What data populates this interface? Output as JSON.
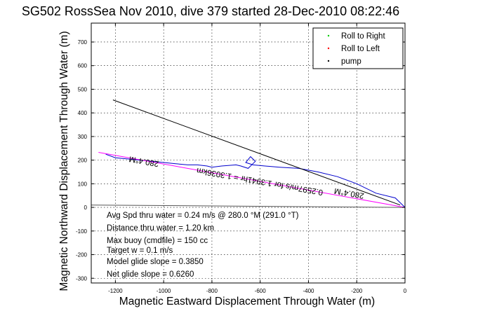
{
  "chart_data": {
    "type": "line",
    "title": "SG502 RossSea Nov 2010, dive 379 started 28-Dec-2010 08:22:46",
    "xlabel": "Magnetic Eastward Displacement Through Water (m)",
    "ylabel": "Magnetic Northward Displacement Through Water (m)",
    "xlim": [
      -1300,
      0
    ],
    "ylim": [
      -320,
      780
    ],
    "xticks": [
      -1200,
      -1000,
      -800,
      -600,
      -400,
      -200,
      0
    ],
    "yticks": [
      -300,
      -200,
      -100,
      0,
      100,
      200,
      300,
      400,
      500,
      600,
      700
    ],
    "grid": true,
    "legend_position": "top-right",
    "legend": [
      {
        "label": "Roll to Right",
        "color": "#00cc00",
        "marker": "."
      },
      {
        "label": "Roll to Left",
        "color": "#ff0000",
        "marker": "."
      },
      {
        "label": "pump",
        "color": "#000000",
        "marker": "."
      }
    ],
    "series": [
      {
        "color": "#0000cc",
        "values": [
          [
            0,
            0
          ],
          [
            -40,
            40
          ],
          [
            -120,
            60
          ],
          [
            -200,
            100
          ],
          [
            -280,
            130
          ],
          [
            -360,
            150
          ],
          [
            -440,
            165
          ],
          [
            -520,
            170
          ],
          [
            -580,
            175
          ],
          [
            -630,
            180
          ],
          [
            -660,
            190
          ],
          [
            -640,
            215
          ],
          [
            -620,
            195
          ],
          [
            -650,
            165
          ],
          [
            -680,
            175
          ],
          [
            -700,
            180
          ],
          [
            -760,
            175
          ],
          [
            -800,
            170
          ],
          [
            -820,
            175
          ],
          [
            -860,
            180
          ],
          [
            -900,
            180
          ],
          [
            -950,
            185
          ],
          [
            -1000,
            190
          ],
          [
            -1050,
            195
          ],
          [
            -1100,
            200
          ],
          [
            -1150,
            205
          ],
          [
            -1200,
            210
          ],
          [
            -1240,
            225
          ]
        ]
      },
      {
        "color": "#ff00ff",
        "values": [
          [
            -1270,
            233
          ],
          [
            0,
            0
          ]
        ]
      },
      {
        "color": "#000000",
        "values": [
          [
            -1210,
            455
          ],
          [
            -20,
            10
          ]
        ]
      },
      {
        "color": "#555555",
        "values": [
          [
            -1300,
            10
          ],
          [
            0,
            0
          ]
        ]
      }
    ],
    "annotations": [
      {
        "text": "280.4°M",
        "x": -1080,
        "y": 205,
        "angle": 190
      },
      {
        "text": "0.2597m/s for 1.3941hr = 1.3036km",
        "x": -600,
        "y": 120,
        "angle": 190
      },
      {
        "text": "280.4°M",
        "x": -230,
        "y": 70,
        "angle": 190
      }
    ]
  },
  "stats": {
    "avg_speed": "Avg Spd thru water =  0.24 m/s @ 280.0    °M (291.0 °T)",
    "distance": "Distance thru water = 1.20 km",
    "max_buoy": "Max buoy (cmdfile) = 150 cc",
    "target_w": "Target w = 0.1 m/s",
    "model_glide": "Model glide slope = 0.3850",
    "net_glide": "Net glide slope = 0.6260"
  }
}
